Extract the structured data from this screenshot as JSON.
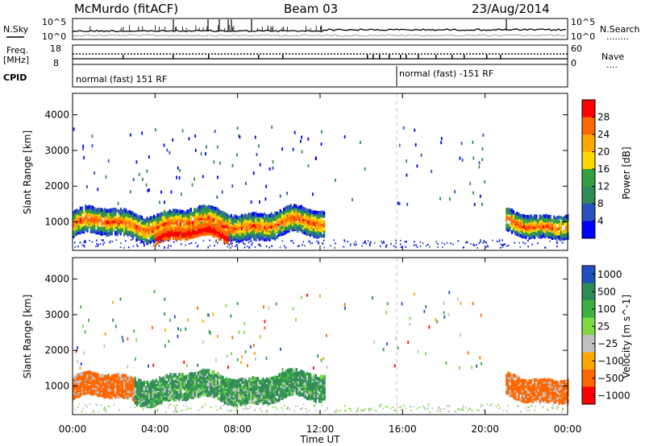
{
  "header": {
    "station": "McMurdo (fitACF)",
    "beam": "Beam 03",
    "date": "23/Aug/2014"
  },
  "top_panels": {
    "nsky_label": "N.Sky",
    "nsearch_label": "N.Search",
    "nsearch_dots": "........",
    "noise_ticks": [
      "10^5",
      "10^0"
    ],
    "freq_label_line1": "Freq.",
    "freq_label_line2": "[MHz]",
    "freq_ticks": [
      "18",
      "8"
    ],
    "nave_label": "Nave",
    "nave_dots": "....",
    "nave_ticks": [
      "60",
      "0"
    ],
    "cpid_label": "CPID",
    "cpid_segments": [
      "normal (fast) 151 RF",
      "normal (fast) -151 RF"
    ]
  },
  "chart_data": [
    {
      "type": "heatmap",
      "name": "power-panel",
      "ylabel": "Slant Range [km]",
      "yticks": [
        "1000",
        "2000",
        "3000",
        "4000"
      ],
      "ylim": [
        200,
        4600
      ],
      "xlim_hours": [
        0,
        24
      ],
      "colorbar": {
        "label": "Power [dB]",
        "range": [
          0,
          32
        ],
        "ticks": [
          "4",
          "8",
          "12",
          "16",
          "20",
          "24",
          "28"
        ],
        "colors": [
          "#0000ff",
          "#2a52be",
          "#2e8b57",
          "#32a040",
          "#ffd700",
          "#ffa500",
          "#ff6600",
          "#ff0000"
        ]
      },
      "scatter_bands": [
        {
          "start": 0.0,
          "end": 12.2,
          "center_km": 1000,
          "spread_km": 350,
          "level": "mid-high"
        },
        {
          "start": 4.0,
          "end": 7.5,
          "center_km": 700,
          "spread_km": 150,
          "level": "high"
        },
        {
          "start": 21.0,
          "end": 24.0,
          "center_km": 1000,
          "spread_km": 300,
          "level": "mid-high"
        }
      ],
      "cutoff_hour": 16.0
    },
    {
      "type": "heatmap",
      "name": "velocity-panel",
      "ylabel": "Slant Range [km]",
      "yticks": [
        "1000",
        "2000",
        "3000",
        "4000"
      ],
      "ylim": [
        200,
        4600
      ],
      "xlim_hours": [
        0,
        24
      ],
      "colorbar": {
        "label": "Velocity [m s^-1]",
        "ticks": [
          "1000",
          "500",
          "100",
          "25",
          "−25",
          "−100",
          "−500",
          "−1000"
        ],
        "colors": [
          "#2050c0",
          "#2e8b57",
          "#3cb043",
          "#7fd940",
          "#c0c0c0",
          "#ffa500",
          "#ff6600",
          "#ff0000"
        ]
      },
      "scatter_bands": [
        {
          "start": 0.0,
          "end": 3.0,
          "center_km": 1000,
          "spread_km": 300,
          "level": "orange"
        },
        {
          "start": 3.0,
          "end": 12.2,
          "center_km": 1000,
          "spread_km": 350,
          "level": "green"
        },
        {
          "start": 21.0,
          "end": 24.0,
          "center_km": 1000,
          "spread_km": 300,
          "level": "orange"
        }
      ],
      "cutoff_hour": 16.0
    }
  ],
  "x_axis": {
    "label": "Time UT",
    "ticks": [
      "00:00",
      "04:00",
      "08:00",
      "12:00",
      "16:00",
      "20:00",
      "00:00"
    ]
  }
}
